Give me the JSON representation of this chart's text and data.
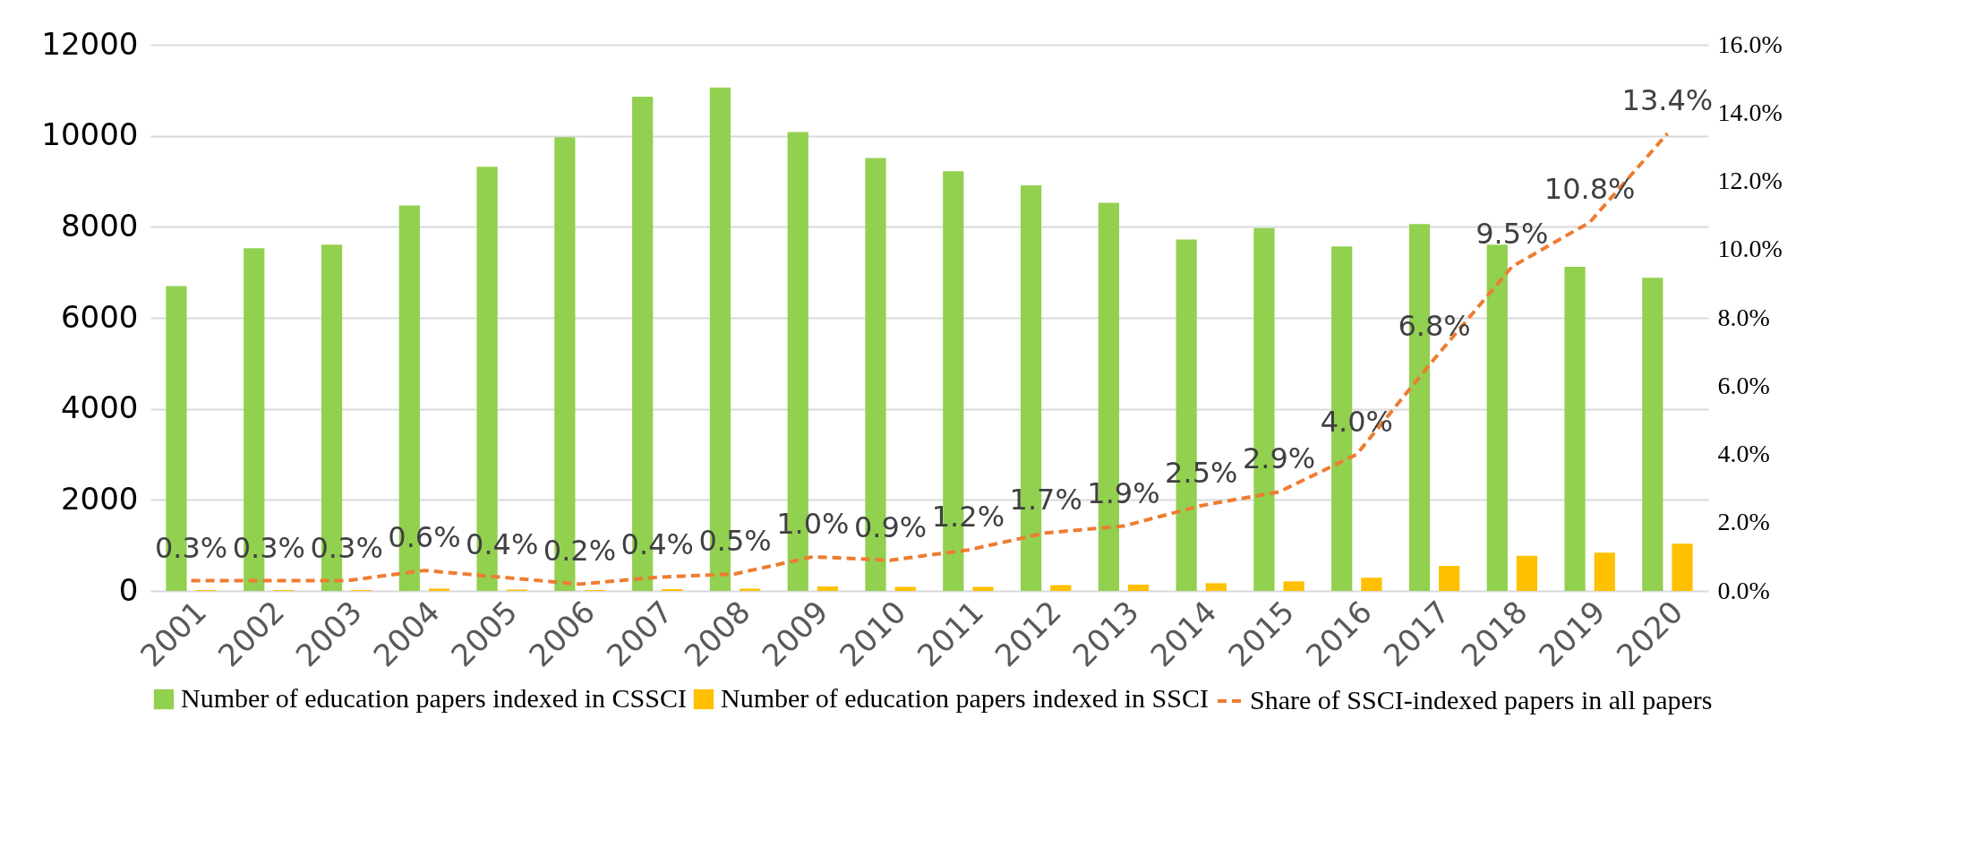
{
  "chart_data": {
    "type": "bar",
    "categories": [
      "2001",
      "2002",
      "2003",
      "2004",
      "2005",
      "2006",
      "2007",
      "2008",
      "2009",
      "2010",
      "2011",
      "2012",
      "2013",
      "2014",
      "2015",
      "2016",
      "2017",
      "2018",
      "2019",
      "2020"
    ],
    "series": [
      {
        "name": "Number of education papers indexed in CSSCI",
        "color": "#92d050",
        "values": [
          6700,
          7530,
          7610,
          8470,
          9320,
          9970,
          10860,
          11060,
          10080,
          9510,
          9220,
          8910,
          8530,
          7720,
          7970,
          7570,
          8060,
          7610,
          7120,
          6880
        ]
      },
      {
        "name": "Number of education papers indexed in SSCI",
        "color": "#ffc000",
        "values": [
          20,
          20,
          20,
          50,
          30,
          20,
          40,
          50,
          100,
          90,
          90,
          130,
          140,
          170,
          210,
          290,
          550,
          770,
          840,
          1040
        ]
      },
      {
        "name": "Share of SSCI-indexed papers in all papers",
        "type": "line",
        "axis": "y2",
        "color": "#ed7d31",
        "line_style": "dashed",
        "values": [
          0.3,
          0.3,
          0.3,
          0.6,
          0.4,
          0.2,
          0.4,
          0.5,
          1.0,
          0.9,
          1.2,
          1.7,
          1.9,
          2.5,
          2.9,
          4.0,
          6.8,
          9.5,
          10.8,
          13.4
        ],
        "value_labels": [
          "0.3%",
          "0.3%",
          "0.3%",
          "0.6%",
          "0.4%",
          "0.2%",
          "0.4%",
          "0.5%",
          "1.0%",
          "0.9%",
          "1.2%",
          "1.7%",
          "1.9%",
          "2.5%",
          "2.9%",
          "4.0%",
          "6.8%",
          "9.5%",
          "10.8%",
          "13.4%"
        ]
      }
    ],
    "ylim": [
      0,
      12000
    ],
    "yticks": [
      0,
      2000,
      4000,
      6000,
      8000,
      10000,
      12000
    ],
    "y2lim": [
      0,
      16
    ],
    "y2ticks": [
      {
        "value": 0,
        "label": "0.0%"
      },
      {
        "value": 2,
        "label": "2.0%"
      },
      {
        "value": 4,
        "label": "4.0%"
      },
      {
        "value": 6,
        "label": "6.0%"
      },
      {
        "value": 8,
        "label": "8.0%"
      },
      {
        "value": 10,
        "label": "10.0%"
      },
      {
        "value": 12,
        "label": "12.0%"
      },
      {
        "value": 14,
        "label": "14.0%"
      },
      {
        "value": 16,
        "label": "16.0%"
      }
    ],
    "grid": "y",
    "legend": "bottom"
  }
}
